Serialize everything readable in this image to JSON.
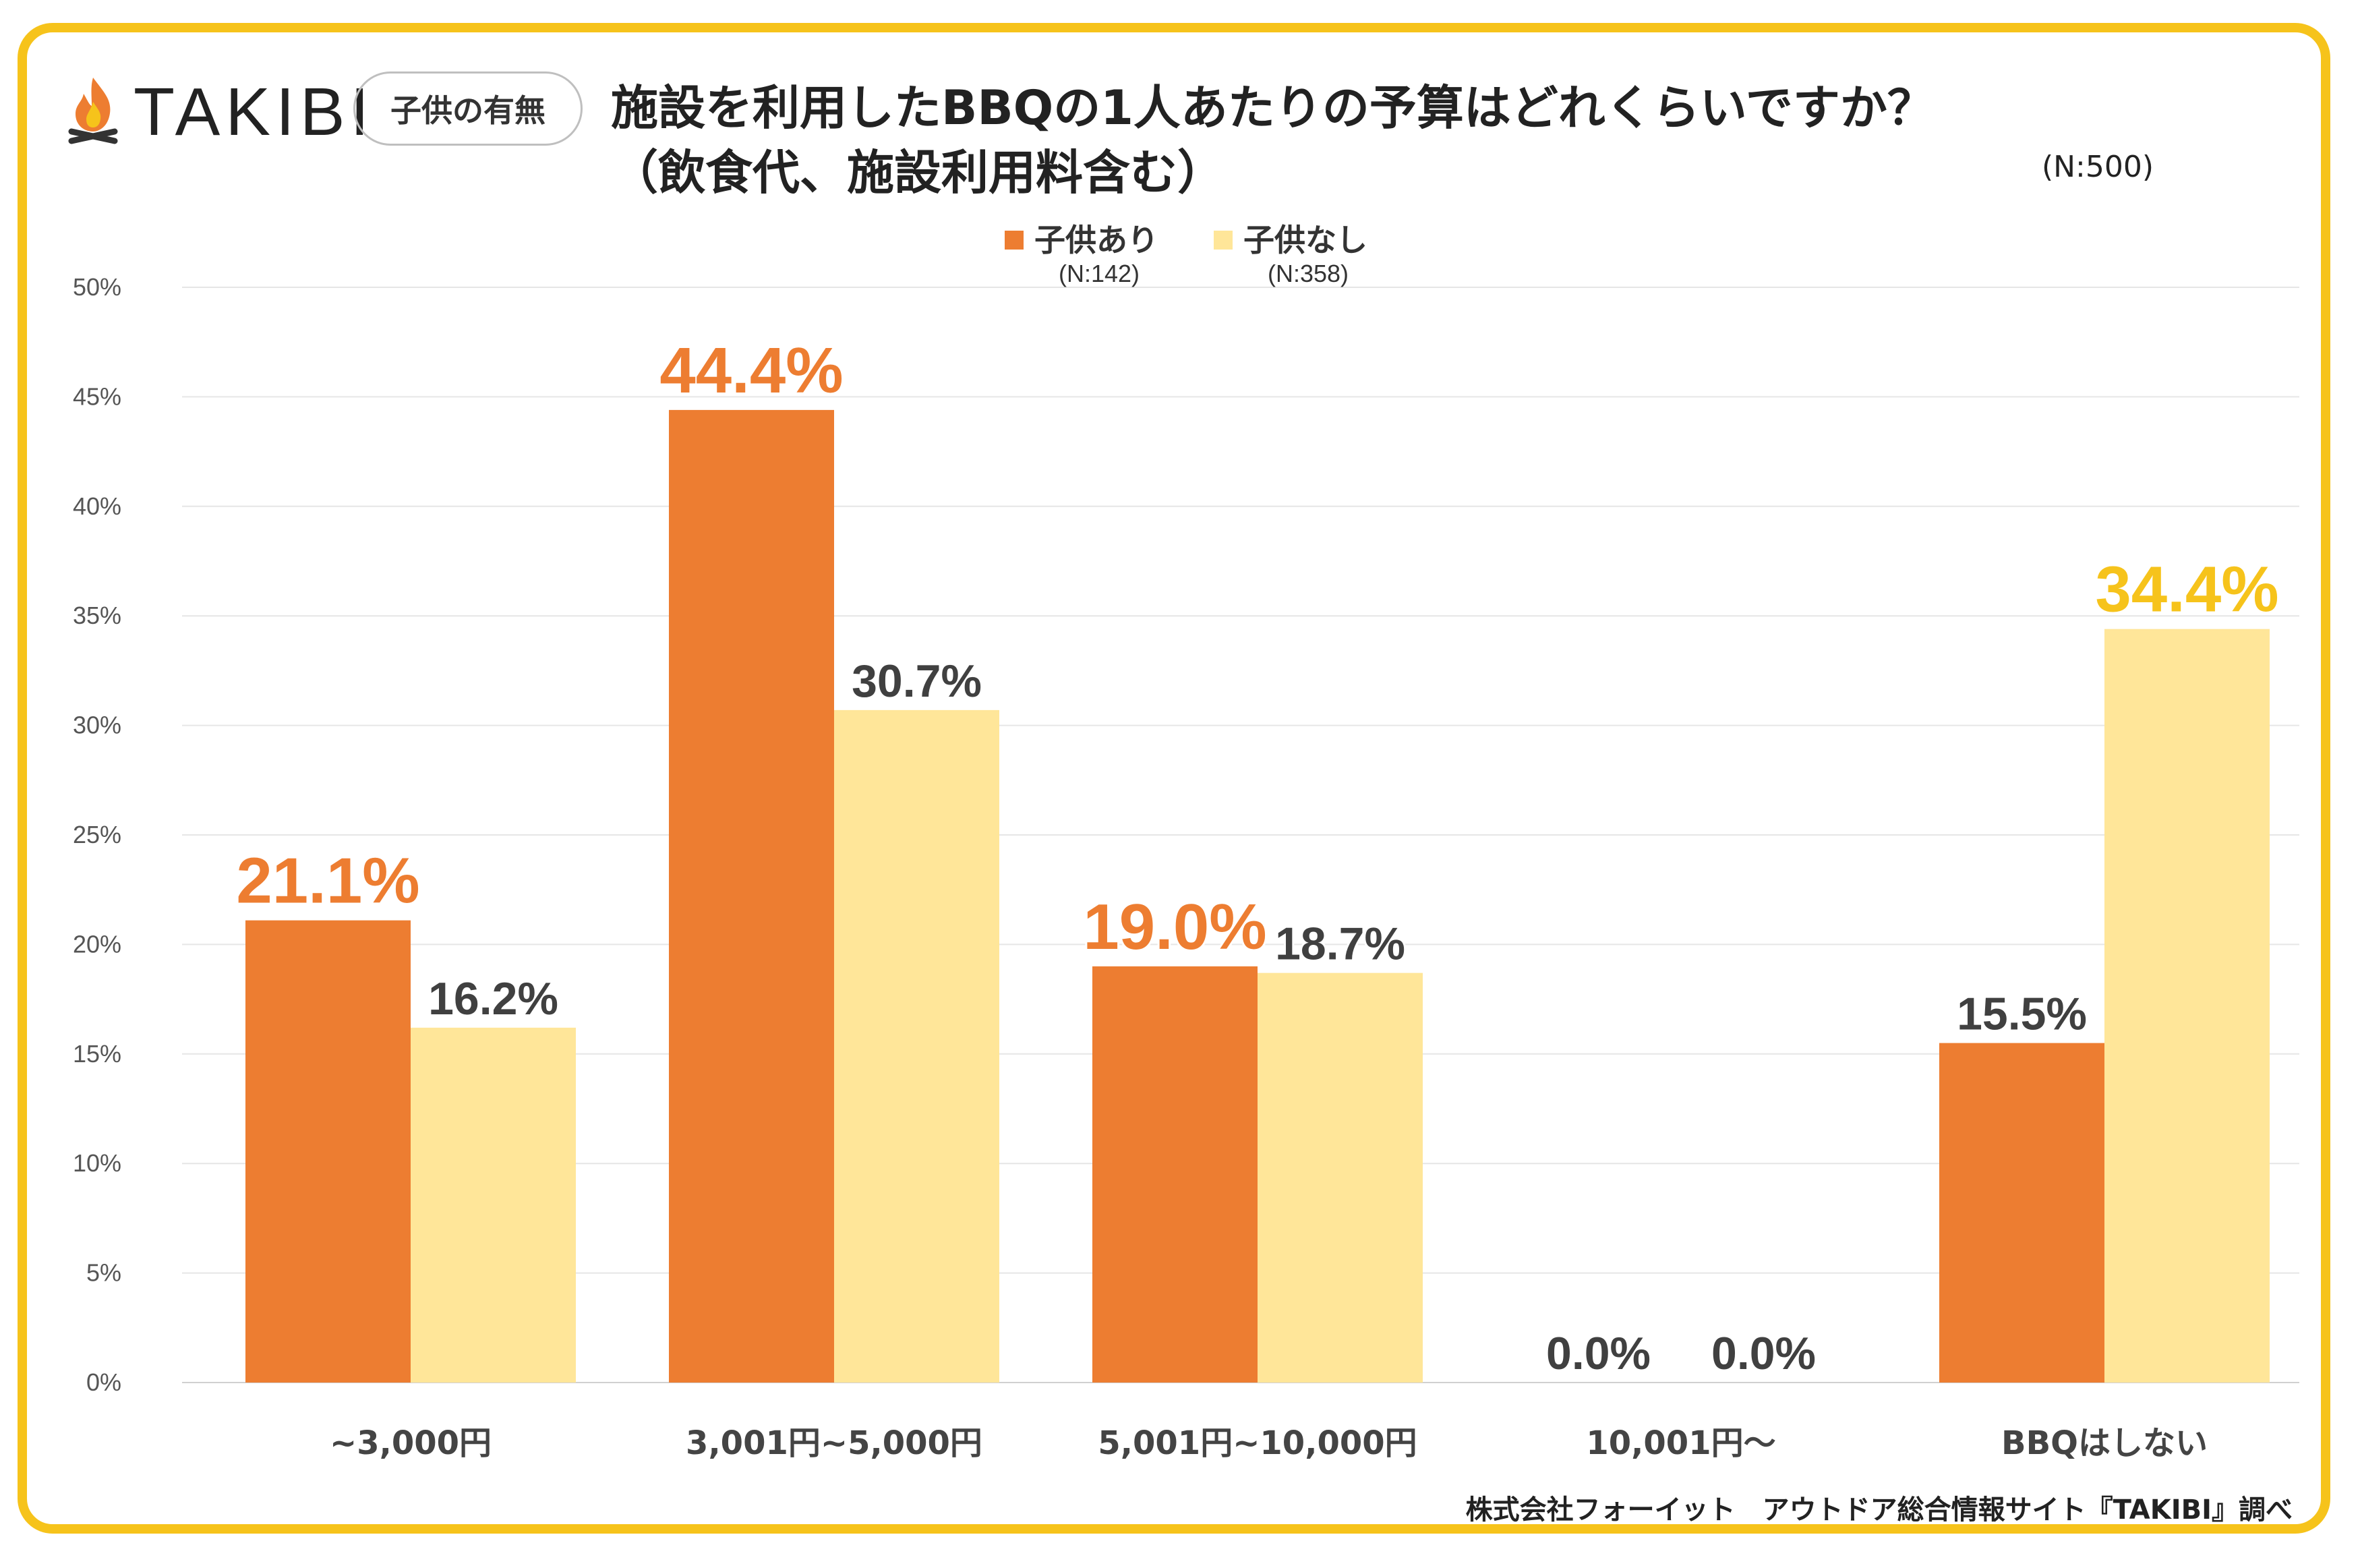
{
  "brand": {
    "name": "TAKIBI",
    "icon": "campfire-icon"
  },
  "tag_label": "子供の有無",
  "title_line1": "施設を利用したBBQの1人あたりの予算はどれくらいですか？",
  "title_line2": "（飲食代、施設利用料含む）",
  "total_n": "(N:500)",
  "credit": "株式会社フォーイット　アウトドア総合情報サイト『TAKIBI』調べ",
  "colors": {
    "with_children": "#ED7D31",
    "without_children": "#FFE699",
    "highlight_yellow": "#F6C31B",
    "label_dark": "#404040"
  },
  "chart_data": {
    "type": "bar",
    "title": "施設を利用したBBQの1人あたりの予算はどれくらいですか？（飲食代、施設利用料含む）",
    "categories": [
      "~3,000円",
      "3,001円~5,000円",
      "5,001円~10,000円",
      "10,001円～",
      "BBQはしない"
    ],
    "series": [
      {
        "name": "子供あり",
        "n": "(N:142)",
        "values": [
          21.1,
          44.4,
          19.0,
          0.0,
          15.5
        ],
        "labels": [
          "21.1%",
          "44.4%",
          "19.0%",
          "0.0%",
          "15.5%"
        ],
        "label_colors": [
          "orange",
          "orange",
          "orange",
          "dark",
          "dark"
        ]
      },
      {
        "name": "子供なし",
        "n": "(N:358)",
        "values": [
          16.2,
          30.7,
          18.7,
          0.0,
          34.4
        ],
        "labels": [
          "16.2%",
          "30.7%",
          "18.7%",
          "0.0%",
          "34.4%"
        ],
        "label_colors": [
          "dark",
          "dark",
          "dark",
          "dark",
          "yellow"
        ]
      }
    ],
    "yticks": [
      "0%",
      "5%",
      "10%",
      "15%",
      "20%",
      "25%",
      "30%",
      "35%",
      "40%",
      "45%",
      "50%"
    ],
    "ylim": [
      0,
      50
    ],
    "grid": true,
    "legend": "top-center"
  }
}
